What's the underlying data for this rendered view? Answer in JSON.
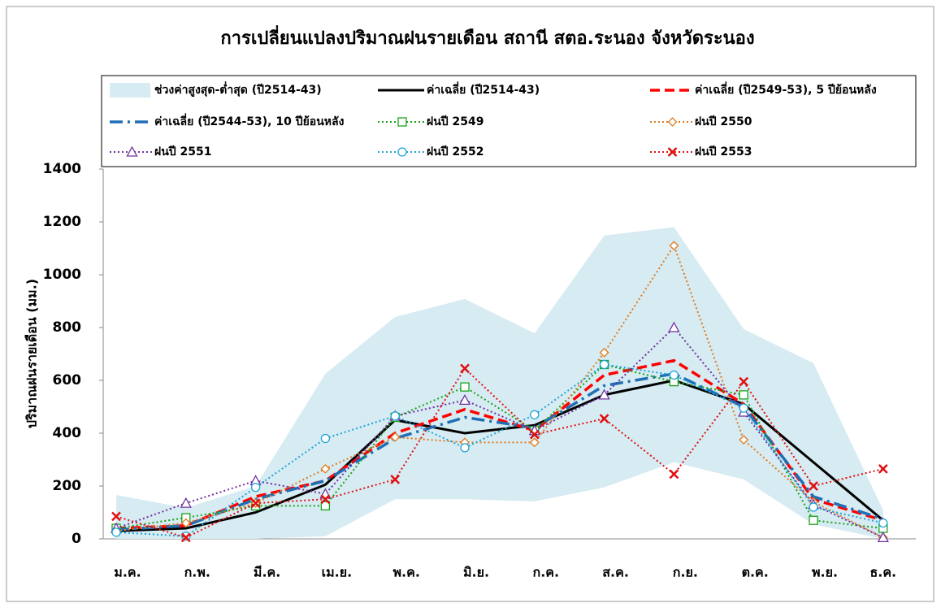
{
  "chart_data": {
    "type": "line",
    "title": "การเปลี่ยนแปลงปริมาณฝนรายเดือน สถานี สตอ.ระนอง จังหวัดระนอง",
    "y_label": "ปริมาณฝนรายเดือน (มม.)",
    "categories": [
      "ม.ค.",
      "ก.พ.",
      "มี.ค.",
      "เม.ย.",
      "พ.ค.",
      "มิ.ย.",
      "ก.ค.",
      "ส.ค.",
      "ก.ย.",
      "ต.ค.",
      "พ.ย.",
      "ธ.ค."
    ],
    "ylim": [
      0,
      1400
    ],
    "yticks": [
      0,
      200,
      400,
      600,
      800,
      1000,
      1200,
      1400
    ],
    "band": {
      "name": "ช่วงค่าสูงสุด-ต่ำสุด (ปี2514-43)",
      "color": "#d6ebf2",
      "max": [
        166,
        117,
        200,
        625,
        840,
        908,
        778,
        1148,
        1180,
        794,
        665,
        108
      ],
      "min": [
        0,
        0,
        0,
        10,
        150,
        150,
        142,
        195,
        290,
        225,
        55,
        0
      ]
    },
    "series": [
      {
        "name": "ค่าเฉลี่ย (ปี2514-43)",
        "color": "#000000",
        "dash": "solid",
        "marker": "none",
        "values": [
          30,
          40,
          100,
          205,
          450,
          400,
          430,
          545,
          600,
          510,
          290,
          70
        ]
      },
      {
        "name": "ค่าเฉลี่ย (ปี2549-53), 5 ปีย้อนหลัง",
        "color": "#ff0000",
        "dash": "dash",
        "marker": "none",
        "values": [
          40,
          50,
          160,
          220,
          400,
          490,
          410,
          620,
          675,
          510,
          150,
          70
        ]
      },
      {
        "name": "ค่าเฉลี่ย (ปี2544-53), 10 ปีย้อนหลัง",
        "color": "#1f6fb5",
        "dash": "dashdot",
        "marker": "none",
        "values": [
          35,
          50,
          150,
          220,
          380,
          460,
          420,
          580,
          625,
          500,
          160,
          75
        ]
      },
      {
        "name": "ฝนปี 2549",
        "color": "#1aa31a",
        "dash": "dot",
        "marker": "square",
        "values": [
          40,
          80,
          125,
          125,
          460,
          575,
          410,
          660,
          595,
          545,
          70,
          40
        ]
      },
      {
        "name": "ฝนปี 2550",
        "color": "#e07b20",
        "dash": "dot",
        "marker": "diamond",
        "values": [
          30,
          60,
          135,
          265,
          385,
          365,
          365,
          705,
          1110,
          375,
          140,
          5
        ]
      },
      {
        "name": "ฝนปี 2551",
        "color": "#7030a0",
        "dash": "dot",
        "marker": "triangle",
        "values": [
          40,
          135,
          220,
          170,
          465,
          525,
          410,
          545,
          800,
          480,
          130,
          5
        ]
      },
      {
        "name": "ฝนปี 2552",
        "color": "#1fa3d6",
        "dash": "dot",
        "marker": "circle",
        "values": [
          25,
          10,
          195,
          380,
          465,
          345,
          470,
          660,
          620,
          495,
          120,
          60
        ]
      },
      {
        "name": "ฝนปี 2553",
        "color": "#e01010",
        "dash": "dot",
        "marker": "x",
        "values": [
          85,
          5,
          135,
          150,
          225,
          645,
          395,
          455,
          245,
          595,
          200,
          265
        ]
      }
    ]
  }
}
